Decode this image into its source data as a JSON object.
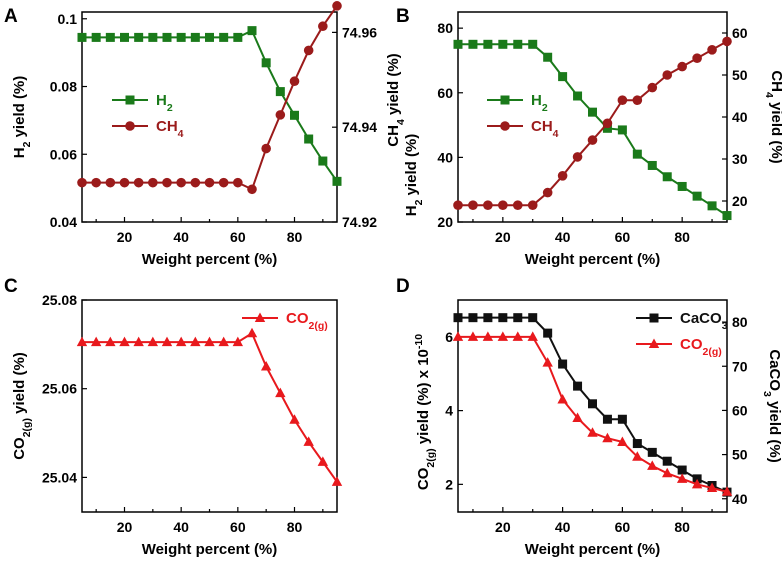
{
  "chart_data": [
    {
      "panel": "A",
      "type": "line",
      "xlabel": "Weight percent (%)",
      "ylabel": "H2 yield (%)",
      "y2label": "",
      "xlim": [
        5,
        95
      ],
      "xticks": [
        20,
        40,
        60,
        80
      ],
      "ylim": [
        0.04,
        0.102
      ],
      "yticks": [
        0.04,
        0.06,
        0.08,
        0.1
      ],
      "ytick_labels": [
        "0.04",
        "0.06",
        "0.08",
        "0.1"
      ],
      "y2lim": [
        74.92,
        74.9643
      ],
      "y2ticks": [
        74.92,
        74.94,
        74.96
      ],
      "y2tick_labels": [
        "74.92",
        "74.94",
        "74.96"
      ],
      "legend_position": "middle-left",
      "x": [
        5,
        10,
        15,
        20,
        25,
        30,
        35,
        40,
        45,
        50,
        55,
        60,
        65,
        70,
        75,
        80,
        85,
        90,
        95
      ],
      "series": [
        {
          "name": "H2",
          "color": "#1a7a1a",
          "marker": "square",
          "axis": "left",
          "values": [
            0.0945,
            0.0945,
            0.0945,
            0.0945,
            0.0945,
            0.0945,
            0.0945,
            0.0945,
            0.0945,
            0.0945,
            0.0945,
            0.0945,
            0.0965,
            0.087,
            0.0785,
            0.0715,
            0.0645,
            0.058,
            0.052
          ]
        },
        {
          "name": "CH4",
          "color": "#9b1b1b",
          "marker": "circle",
          "axis": "right",
          "values": [
            74.9283,
            74.9283,
            74.9283,
            74.9283,
            74.9283,
            74.9283,
            74.9283,
            74.9283,
            74.9283,
            74.9283,
            74.9283,
            74.9283,
            74.9269,
            74.9355,
            74.9426,
            74.9497,
            74.9562,
            74.9613,
            74.9656
          ]
        }
      ],
      "legend": [
        {
          "label": "H",
          "sub": "2",
          "tail": ""
        },
        {
          "label": "CH",
          "sub": "4",
          "tail": ""
        }
      ]
    },
    {
      "panel": "B",
      "type": "line",
      "xlabel": "Weight percent (%)",
      "ylabel": "CH4 yield (%) / H2 yield (%)",
      "y2label": "CH4 yield (%)",
      "xlim": [
        5,
        95
      ],
      "xticks": [
        20,
        40,
        60,
        80
      ],
      "ylim": [
        20,
        85
      ],
      "yticks": [
        20,
        40,
        60,
        80
      ],
      "ytick_labels": [
        "20",
        "40",
        "60",
        "80"
      ],
      "y2lim": [
        15,
        65
      ],
      "y2ticks": [
        20,
        30,
        40,
        50,
        60
      ],
      "y2tick_labels": [
        "20",
        "30",
        "40",
        "50",
        "60"
      ],
      "legend_position": "middle-left",
      "x": [
        5,
        10,
        15,
        20,
        25,
        30,
        35,
        40,
        45,
        50,
        55,
        60,
        65,
        70,
        75,
        80,
        85,
        90,
        95
      ],
      "series": [
        {
          "name": "H2",
          "color": "#1a7a1a",
          "marker": "square",
          "axis": "left",
          "values": [
            75,
            75,
            75,
            75,
            75,
            75,
            71,
            65,
            59,
            54,
            49,
            48.5,
            41,
            37.5,
            34,
            31,
            28,
            25,
            22
          ]
        },
        {
          "name": "CH4",
          "color": "#9b1b1b",
          "marker": "circle",
          "axis": "right",
          "values": [
            19,
            19,
            19,
            19,
            19,
            19,
            22,
            26,
            30.5,
            34.5,
            38.5,
            44,
            44,
            47,
            50,
            52,
            54,
            56,
            58
          ]
        }
      ],
      "legend": [
        {
          "label": "H",
          "sub": "2",
          "tail": ""
        },
        {
          "label": "CH",
          "sub": "4",
          "tail": ""
        }
      ]
    },
    {
      "panel": "C",
      "type": "line",
      "xlabel": "Weight percent (%)",
      "ylabel": "CO2(g) yield (%)",
      "y2label": "",
      "xlim": [
        5,
        95
      ],
      "xticks": [
        20,
        40,
        60,
        80
      ],
      "ylim": [
        25.0322,
        25.08
      ],
      "yticks": [
        25.04,
        25.06,
        25.08
      ],
      "ytick_labels": [
        "25.04",
        "25.06",
        "25.08"
      ],
      "legend_position": "top-right",
      "x": [
        5,
        10,
        15,
        20,
        25,
        30,
        35,
        40,
        45,
        50,
        55,
        60,
        65,
        70,
        75,
        80,
        85,
        90,
        95
      ],
      "series": [
        {
          "name": "CO2(g)",
          "color": "#e8191d",
          "marker": "triangle",
          "axis": "left",
          "values": [
            25.0705,
            25.0705,
            25.0705,
            25.0705,
            25.0705,
            25.0705,
            25.0705,
            25.0705,
            25.0705,
            25.0705,
            25.0705,
            25.0705,
            25.0725,
            25.065,
            25.059,
            25.053,
            25.048,
            25.0435,
            25.039
          ]
        }
      ],
      "legend": [
        {
          "label": "CO",
          "sub": "2(g)",
          "tail": ""
        }
      ]
    },
    {
      "panel": "D",
      "type": "line",
      "xlabel": "Weight percent (%)",
      "ylabel": "CO2(g) yield (%) x 10-10",
      "y2label": "CaCO3 yield (%)",
      "xlim": [
        5,
        95
      ],
      "xticks": [
        20,
        40,
        60,
        80
      ],
      "ylim": [
        1.25,
        7.0
      ],
      "yticks": [
        2,
        4,
        6
      ],
      "ytick_labels": [
        "2",
        "4",
        "6"
      ],
      "y2lim": [
        37,
        85
      ],
      "y2ticks": [
        40,
        50,
        60,
        70,
        80
      ],
      "y2tick_labels": [
        "40",
        "50",
        "60",
        "70",
        "80"
      ],
      "legend_position": "top-right",
      "x": [
        5,
        10,
        15,
        20,
        25,
        30,
        35,
        40,
        45,
        50,
        55,
        60,
        65,
        70,
        75,
        80,
        85,
        90,
        95
      ],
      "series": [
        {
          "name": "CaCO3",
          "color": "#111111",
          "marker": "square",
          "axis": "right",
          "values": [
            81,
            81,
            81,
            81,
            81,
            81,
            77.5,
            70.5,
            65.5,
            61.5,
            58,
            58,
            52.5,
            50.5,
            48.5,
            46.5,
            44.5,
            43,
            41.5
          ]
        },
        {
          "name": "CO2(g)",
          "color": "#e8191d",
          "marker": "triangle",
          "axis": "left",
          "values": [
            6.0,
            6.0,
            6.0,
            6.0,
            6.0,
            6.0,
            5.3,
            4.3,
            3.8,
            3.4,
            3.25,
            3.15,
            2.75,
            2.5,
            2.3,
            2.15,
            2.0,
            1.9,
            1.8
          ]
        }
      ],
      "legend": [
        {
          "label": "CaCO",
          "sub": "3",
          "tail": ""
        },
        {
          "label": "CO",
          "sub": "2(g)",
          "tail": ""
        }
      ]
    }
  ],
  "labels": {
    "panel_letters": [
      "A",
      "B",
      "C",
      "D"
    ],
    "A": {
      "ylabel_main": "H",
      "ylabel_sub": "2",
      "ylabel_tail": " yield (%)"
    },
    "B": {
      "ylabel1_main": "CH",
      "ylabel1_sub": "4",
      "ylabel1_tail": " yield (%)",
      "ylabel2_main": "H",
      "ylabel2_sub": "2",
      "ylabel2_tail": " yield (%)",
      "y2label_main": "CH",
      "y2label_sub": "4",
      "y2label_tail": " yield (%)"
    },
    "C": {
      "ylabel_main": "CO",
      "ylabel_sub": "2(g)",
      "ylabel_tail": " yield (%)"
    },
    "D": {
      "ylabel_main": "CO",
      "ylabel_sub": "2(g)",
      "ylabel_mid": " yield (%) x 10",
      "ylabel_sup": "-10",
      "y2label_main": "CaCO",
      "y2label_sub": "3",
      "y2label_tail": " yield (%)"
    }
  }
}
